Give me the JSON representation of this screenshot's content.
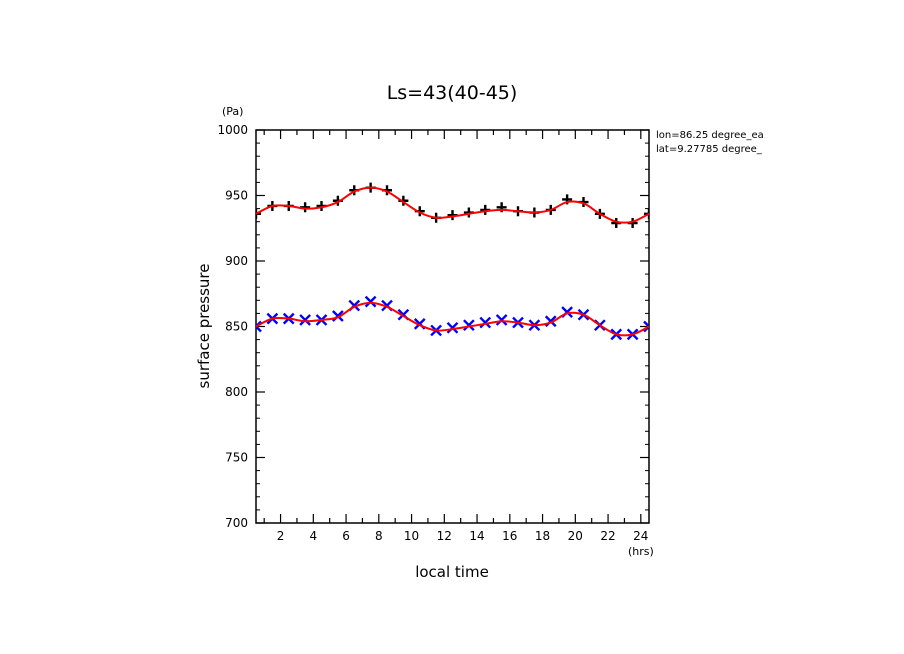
{
  "chart_data": {
    "type": "scatter",
    "title": "Ls=43(40-45)",
    "xlabel": "local time",
    "ylabel": "surface pressure",
    "x_unit": "(hrs)",
    "y_unit": "(Pa)",
    "xlim": [
      0.5,
      24.5
    ],
    "ylim": [
      700,
      1000
    ],
    "x_ticks": [
      2,
      4,
      6,
      8,
      10,
      12,
      14,
      16,
      18,
      20,
      22,
      24
    ],
    "y_ticks": [
      700,
      750,
      800,
      850,
      900,
      950,
      1000
    ],
    "annotations": [
      "lon=86.25 degree_ea",
      "lat=9.27785 degree_"
    ],
    "series": [
      {
        "marker": "plus",
        "color": "#000000",
        "x": [
          0.5,
          1.5,
          2.5,
          3.5,
          4.5,
          5.5,
          6.5,
          7.5,
          8.5,
          9.5,
          10.5,
          11.5,
          12.5,
          13.5,
          14.5,
          15.5,
          16.5,
          17.5,
          18.5,
          19.5,
          20.5,
          21.5,
          22.5,
          23.5,
          24.5
        ],
        "y": [
          936,
          942,
          942,
          941,
          942,
          946,
          954,
          956,
          954,
          946,
          938,
          933,
          935,
          937,
          939,
          941,
          938,
          937,
          939,
          947,
          945,
          936,
          929,
          929,
          936
        ]
      },
      {
        "marker": "cross",
        "color": "#0000ff",
        "x": [
          0.5,
          1.5,
          2.5,
          3.5,
          4.5,
          5.5,
          6.5,
          7.5,
          8.5,
          9.5,
          10.5,
          11.5,
          12.5,
          13.5,
          14.5,
          15.5,
          16.5,
          17.5,
          18.5,
          19.5,
          20.5,
          21.5,
          22.5,
          23.5,
          24.5
        ],
        "y": [
          850,
          856,
          856,
          855,
          855,
          858,
          866,
          869,
          866,
          859,
          852,
          847,
          849,
          851,
          853,
          855,
          853,
          851,
          854,
          861,
          859,
          851,
          844,
          844,
          850
        ]
      },
      {
        "type": "line",
        "color": "#ff0000",
        "x": [
          0.5,
          1.5,
          2.5,
          3.5,
          4.5,
          5.5,
          6.5,
          7.5,
          8.5,
          9.5,
          10.5,
          11.5,
          12.5,
          13.5,
          14.5,
          15.5,
          16.5,
          17.5,
          18.5,
          19.5,
          20.5,
          21.5,
          22.5,
          23.5,
          24.5
        ],
        "y": [
          936,
          942,
          942,
          940,
          941,
          945,
          953,
          956,
          953,
          945,
          937,
          933,
          934,
          936,
          938,
          939,
          938,
          937,
          939,
          945,
          944,
          936,
          930,
          930,
          936
        ]
      },
      {
        "type": "line",
        "color": "#ff0000",
        "x": [
          0.5,
          1.5,
          2.5,
          3.5,
          4.5,
          5.5,
          6.5,
          7.5,
          8.5,
          9.5,
          10.5,
          11.5,
          12.5,
          13.5,
          14.5,
          15.5,
          16.5,
          17.5,
          18.5,
          19.5,
          20.5,
          21.5,
          22.5,
          23.5,
          24.5
        ],
        "y": [
          850,
          856,
          856,
          854,
          855,
          857,
          865,
          868,
          865,
          858,
          851,
          847,
          848,
          850,
          852,
          854,
          853,
          851,
          853,
          860,
          859,
          851,
          844,
          844,
          850
        ]
      }
    ]
  }
}
